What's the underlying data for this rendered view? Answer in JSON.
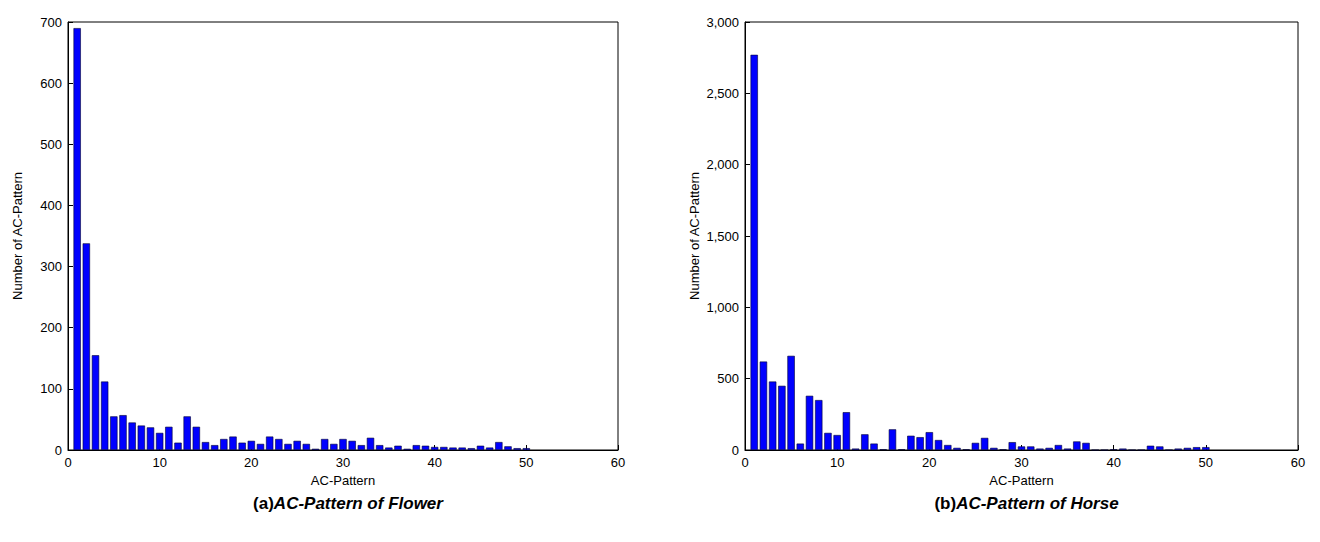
{
  "chart_data": [
    {
      "type": "bar",
      "panel": "(a)",
      "title": "AC-Pattern of Flower",
      "x_label": "AC-Pattern",
      "y_label": "Number of AC-Pattern",
      "x": [
        1,
        2,
        3,
        4,
        5,
        6,
        7,
        8,
        9,
        10,
        11,
        12,
        13,
        14,
        15,
        16,
        17,
        18,
        19,
        20,
        21,
        22,
        23,
        24,
        25,
        26,
        27,
        28,
        29,
        30,
        31,
        32,
        33,
        34,
        35,
        36,
        37,
        38,
        39,
        40,
        41,
        42,
        43,
        44,
        45,
        46,
        47,
        48,
        49,
        50
      ],
      "values": [
        690,
        338,
        155,
        112,
        55,
        57,
        45,
        40,
        37,
        28,
        38,
        12,
        55,
        38,
        13,
        8,
        18,
        22,
        12,
        15,
        10,
        22,
        18,
        10,
        15,
        10,
        2,
        18,
        10,
        18,
        15,
        8,
        20,
        8,
        4,
        7,
        2,
        8,
        7,
        5,
        5,
        4,
        4,
        3,
        7,
        4,
        13,
        6,
        3,
        3
      ],
      "color": "#0000ff",
      "xlim": [
        0,
        60
      ],
      "xticks": [
        0,
        10,
        20,
        30,
        40,
        50,
        60
      ],
      "ylim": [
        0,
        700
      ],
      "yticks": [
        0,
        100,
        200,
        300,
        400,
        500,
        600,
        700
      ],
      "grid": false
    },
    {
      "type": "bar",
      "panel": "(b)",
      "title": "AC-Pattern of Horse",
      "x_label": "AC-Pattern",
      "y_label": "Number of AC-Pattern",
      "x": [
        1,
        2,
        3,
        4,
        5,
        6,
        7,
        8,
        9,
        10,
        11,
        12,
        13,
        14,
        15,
        16,
        17,
        18,
        19,
        20,
        21,
        22,
        23,
        24,
        25,
        26,
        27,
        28,
        29,
        30,
        31,
        32,
        33,
        34,
        35,
        36,
        37,
        38,
        39,
        40,
        41,
        42,
        43,
        44,
        45,
        46,
        47,
        48,
        49,
        50
      ],
      "values": [
        2770,
        620,
        480,
        450,
        660,
        45,
        380,
        350,
        120,
        105,
        265,
        10,
        110,
        45,
        5,
        145,
        5,
        100,
        90,
        125,
        70,
        35,
        15,
        5,
        50,
        85,
        15,
        5,
        55,
        25,
        25,
        10,
        15,
        35,
        10,
        60,
        50,
        0,
        0,
        5,
        10,
        0,
        0,
        30,
        25,
        0,
        10,
        15,
        20,
        20
      ],
      "color": "#0000ff",
      "xlim": [
        0,
        60
      ],
      "xticks": [
        0,
        10,
        20,
        30,
        40,
        50,
        60
      ],
      "ylim": [
        0,
        3000
      ],
      "yticks": [
        0,
        500,
        1000,
        1500,
        2000,
        2500,
        3000
      ],
      "grid": false
    }
  ]
}
